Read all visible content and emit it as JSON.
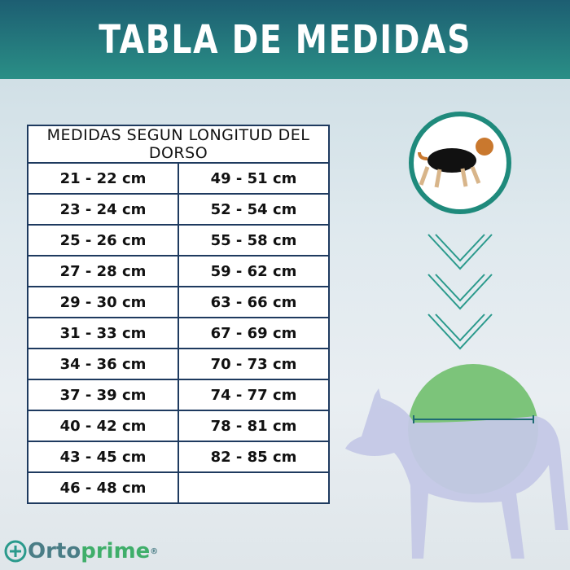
{
  "header": {
    "title": "TABLA DE MEDIDAS"
  },
  "table": {
    "caption": "MEDIDAS SEGUN LONGITUD DEL DORSO",
    "rows": [
      [
        "21 - 22 cm",
        "49 - 51 cm"
      ],
      [
        "23 - 24 cm",
        "52 - 54 cm"
      ],
      [
        "25 - 26 cm",
        "55 - 58 cm"
      ],
      [
        "27 - 28 cm",
        "59 - 62 cm"
      ],
      [
        "29 - 30 cm",
        "63 - 66 cm"
      ],
      [
        "31 - 33 cm",
        "67 - 69 cm"
      ],
      [
        "34 - 36 cm",
        "70 - 73 cm"
      ],
      [
        "37 - 39 cm",
        "74 - 77 cm"
      ],
      [
        "40 - 42 cm",
        "78 - 81 cm"
      ],
      [
        "43 - 45 cm",
        "82 - 85 cm"
      ],
      [
        "46 - 48 cm"
      ]
    ]
  },
  "logo": {
    "parts": [
      "Orto",
      "prime"
    ],
    "mark": "®"
  }
}
